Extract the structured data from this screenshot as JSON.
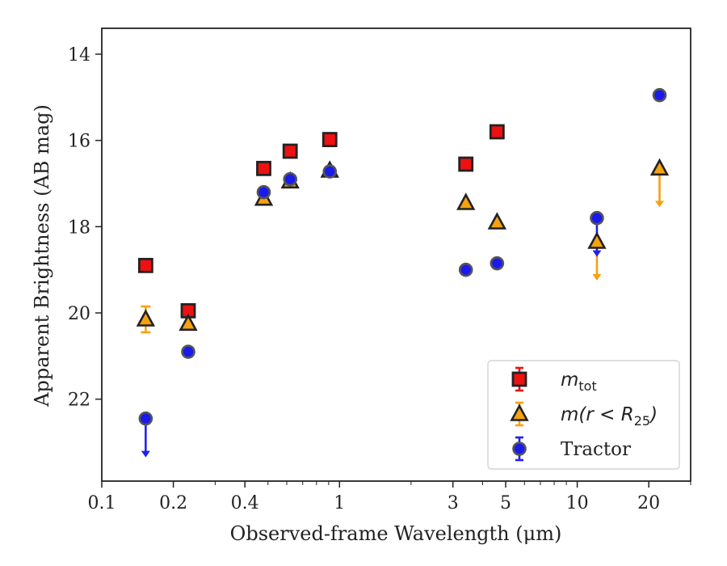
{
  "chart_data": {
    "type": "scatter",
    "title": "",
    "xlabel": "Observed-frame Wavelength (μm)",
    "ylabel": "Apparent Brightness (AB mag)",
    "xscale": "log",
    "xlim": [
      0.1,
      30
    ],
    "ylim": [
      23.9,
      13.4
    ],
    "y_inverted": true,
    "x_ticks": [
      0.1,
      0.2,
      0.4,
      1,
      3,
      5,
      10,
      20
    ],
    "x_tick_labels": [
      "0.1",
      "0.2",
      "0.4",
      "1",
      "3",
      "5",
      "10",
      "20"
    ],
    "y_ticks": [
      14,
      16,
      18,
      20,
      22
    ],
    "y_tick_labels": [
      "14",
      "16",
      "18",
      "20",
      "22"
    ],
    "grid": false,
    "legend_position": "lower-right",
    "series": [
      {
        "name": "m_tot",
        "legend_main": "m",
        "legend_sub": "tot",
        "marker": "square",
        "fill": "#ee1111",
        "edge": "#222222",
        "errcolor": "#ee1111",
        "points": [
          {
            "x": 0.153,
            "y": 18.9
          },
          {
            "x": 0.231,
            "y": 19.95
          },
          {
            "x": 0.48,
            "y": 16.65
          },
          {
            "x": 0.62,
            "y": 16.25
          },
          {
            "x": 0.91,
            "y": 15.98
          },
          {
            "x": 3.4,
            "y": 16.55
          },
          {
            "x": 4.6,
            "y": 15.8
          }
        ]
      },
      {
        "name": "m(r < R_25)",
        "legend_main": "m(r < R",
        "legend_sub": "25",
        "legend_tail": ")",
        "marker": "triangle",
        "fill": "#f5a20f",
        "edge": "#222222",
        "errcolor": "#f5a20f",
        "points": [
          {
            "x": 0.153,
            "y": 20.15,
            "yerr": 0.3
          },
          {
            "x": 0.231,
            "y": 20.25
          },
          {
            "x": 0.48,
            "y": 17.35
          },
          {
            "x": 0.62,
            "y": 16.95
          },
          {
            "x": 0.91,
            "y": 16.7
          },
          {
            "x": 3.4,
            "y": 17.45
          },
          {
            "x": 4.6,
            "y": 17.9
          },
          {
            "x": 12.1,
            "y": 18.35,
            "upper_limit": 19.25
          },
          {
            "x": 22.2,
            "y": 16.65,
            "upper_limit": 17.55
          }
        ]
      },
      {
        "name": "Tractor",
        "legend_main": "Tractor",
        "marker": "circle",
        "fill": "#1a1aee",
        "edge": "#555555",
        "errcolor": "#2020ee",
        "points": [
          {
            "x": 0.153,
            "y": 22.45,
            "upper_limit": 23.35
          },
          {
            "x": 0.231,
            "y": 20.9
          },
          {
            "x": 0.48,
            "y": 17.2
          },
          {
            "x": 0.62,
            "y": 16.9
          },
          {
            "x": 0.91,
            "y": 16.72
          },
          {
            "x": 3.4,
            "y": 19.0
          },
          {
            "x": 4.6,
            "y": 18.85
          },
          {
            "x": 12.1,
            "y": 17.8,
            "upper_limit": 18.7
          },
          {
            "x": 22.2,
            "y": 14.95
          }
        ]
      }
    ]
  }
}
